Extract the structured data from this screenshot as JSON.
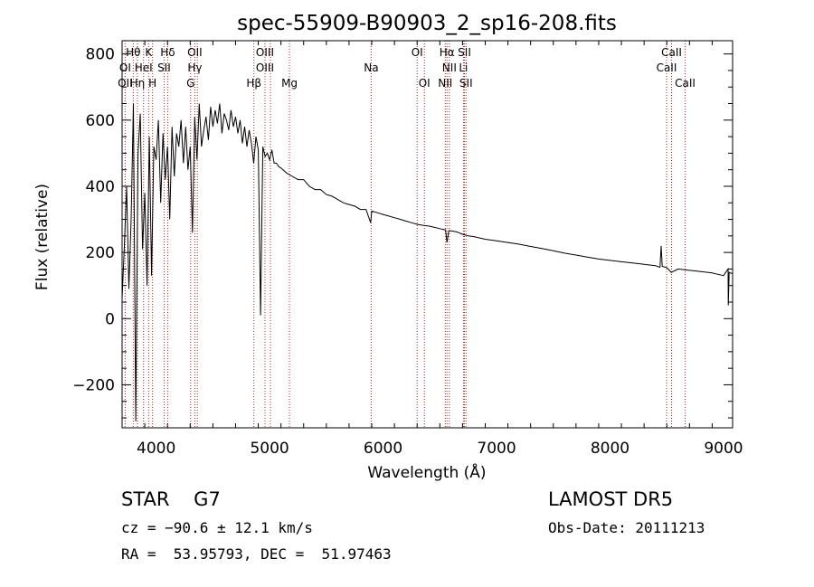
{
  "chart_data": {
    "type": "line",
    "title": "spec-55909-B90903_2_sp16-208.fits",
    "xlabel": "Wavelength (Å)",
    "ylabel": "Flux (relative)",
    "xlim": [
      3700,
      9080
    ],
    "ylim": [
      -330,
      840
    ],
    "xticks": [
      4000,
      5000,
      6000,
      7000,
      8000,
      9000
    ],
    "yticks": [
      -200,
      0,
      200,
      400,
      600,
      800
    ],
    "ytick_labels": [
      "−200",
      "0",
      "200",
      "400",
      "600",
      "800"
    ],
    "line_color": "#000000",
    "marker_color": "#b22222",
    "series": [
      {
        "x": [
          3700,
          3720,
          3740,
          3760,
          3780,
          3800,
          3820,
          3840,
          3860,
          3880,
          3900,
          3920,
          3940,
          3960,
          3980,
          4000,
          4020,
          4040,
          4060,
          4080,
          4100,
          4120,
          4140,
          4160,
          4180,
          4200,
          4220,
          4240,
          4260,
          4280,
          4300,
          4320,
          4340,
          4360,
          4380,
          4400,
          4420,
          4440,
          4460,
          4480,
          4500,
          4520,
          4540,
          4560,
          4580,
          4600,
          4620,
          4640,
          4660,
          4680,
          4700,
          4720,
          4740,
          4760,
          4780,
          4800,
          4820,
          4840,
          4860,
          4880,
          4900,
          4920,
          4940,
          4960,
          4980,
          5000,
          5020,
          5040,
          5060,
          5080,
          5100,
          5150,
          5200,
          5250,
          5300,
          5350,
          5400,
          5450,
          5500,
          5550,
          5600,
          5650,
          5700,
          5750,
          5800,
          5850,
          5890,
          5900,
          5950,
          6000,
          6050,
          6100,
          6150,
          6200,
          6250,
          6300,
          6350,
          6400,
          6450,
          6500,
          6550,
          6563,
          6580,
          6600,
          6650,
          6700,
          6750,
          6800,
          6900,
          7000,
          7100,
          7200,
          7300,
          7400,
          7500,
          7600,
          7700,
          7800,
          7900,
          8000,
          8100,
          8200,
          8300,
          8400,
          8440,
          8450,
          8460,
          8500,
          8540,
          8600,
          8700,
          8800,
          8900,
          8950,
          9000,
          9040,
          9042,
          9050,
          9060,
          9080
        ],
        "y": [
          60,
          220,
          400,
          90,
          300,
          650,
          -310,
          500,
          620,
          210,
          380,
          100,
          550,
          130,
          520,
          480,
          600,
          350,
          560,
          420,
          520,
          300,
          580,
          430,
          560,
          520,
          600,
          470,
          580,
          450,
          520,
          260,
          610,
          480,
          650,
          520,
          570,
          610,
          540,
          640,
          580,
          630,
          590,
          650,
          560,
          620,
          600,
          570,
          630,
          580,
          610,
          560,
          600,
          530,
          580,
          520,
          570,
          530,
          470,
          550,
          510,
          10,
          520,
          490,
          500,
          480,
          510,
          470,
          470,
          460,
          455,
          440,
          430,
          420,
          420,
          400,
          390,
          390,
          375,
          370,
          360,
          350,
          345,
          340,
          330,
          330,
          290,
          325,
          320,
          315,
          310,
          305,
          300,
          295,
          290,
          285,
          282,
          280,
          276,
          272,
          268,
          230,
          266,
          265,
          262,
          255,
          250,
          248,
          240,
          235,
          230,
          225,
          218,
          212,
          205,
          198,
          192,
          186,
          180,
          176,
          172,
          168,
          164,
          160,
          155,
          220,
          158,
          154,
          140,
          150,
          146,
          142,
          138,
          134,
          130,
          150,
          40,
          140,
          138,
          136
        ]
      }
    ],
    "lines": [
      {
        "label": "Hθ",
        "x": 3798,
        "row": 0
      },
      {
        "label": "K",
        "x": 3934,
        "row": 0
      },
      {
        "label": "Hδ",
        "x": 4102,
        "row": 0
      },
      {
        "label": "OII",
        "x": 4341,
        "row": 0
      },
      {
        "label": "OIII",
        "x": 4959,
        "row": 0
      },
      {
        "label": "OI",
        "x": 6300,
        "row": 0
      },
      {
        "label": "Hα",
        "x": 6563,
        "row": 0
      },
      {
        "label": "SII",
        "x": 6717,
        "row": 0
      },
      {
        "label": "CaII",
        "x": 8542,
        "row": 0
      },
      {
        "label": "OI",
        "x": 3727,
        "row": 1
      },
      {
        "label": "HeI",
        "x": 3889,
        "row": 1
      },
      {
        "label": "SII",
        "x": 4070,
        "row": 1
      },
      {
        "label": "Hγ",
        "x": 4341,
        "row": 1
      },
      {
        "label": "OIII",
        "x": 4959,
        "row": 1
      },
      {
        "label": "Na",
        "x": 5895,
        "row": 1
      },
      {
        "label": "NII",
        "x": 6584,
        "row": 1
      },
      {
        "label": "Li",
        "x": 6708,
        "row": 1
      },
      {
        "label": "CaII",
        "x": 8498,
        "row": 1
      },
      {
        "label": "OII",
        "x": 3727,
        "row": 2
      },
      {
        "label": "Hη",
        "x": 3835,
        "row": 2
      },
      {
        "label": "H",
        "x": 3968,
        "row": 2
      },
      {
        "label": "G",
        "x": 4304,
        "row": 2
      },
      {
        "label": "Hβ",
        "x": 4861,
        "row": 2
      },
      {
        "label": "Mg",
        "x": 5175,
        "row": 2
      },
      {
        "label": "OI",
        "x": 6364,
        "row": 2
      },
      {
        "label": "NII",
        "x": 6548,
        "row": 2
      },
      {
        "label": "SII",
        "x": 6731,
        "row": 2
      },
      {
        "label": "CaII",
        "x": 8662,
        "row": 2
      }
    ],
    "marker_x": [
      3727,
      3798,
      3835,
      3889,
      3934,
      3968,
      4070,
      4102,
      4304,
      4341,
      4363,
      4861,
      4959,
      5007,
      5175,
      5895,
      6300,
      6364,
      6548,
      6563,
      6584,
      6708,
      6717,
      6731,
      8498,
      8542,
      8662
    ]
  },
  "info": {
    "class_line": "STAR    G7",
    "cz_line": "cz = −90.6 ± 12.1 km/s",
    "radec_line": "RA =  53.95793, DEC =  51.97463",
    "survey": "LAMOST DR5",
    "obs_date": "Obs-Date: 20111213"
  }
}
